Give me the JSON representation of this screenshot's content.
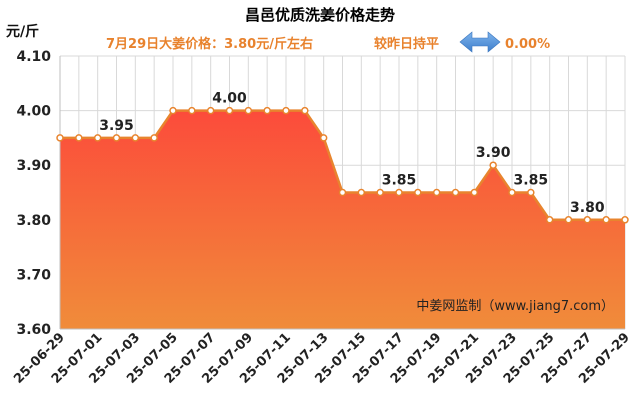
{
  "chart_data": {
    "type": "area",
    "title": "昌邑优质洗姜价格走势",
    "ylabel": "元/斤",
    "xlabel": "",
    "ylim": [
      3.6,
      4.1
    ],
    "yticks": [
      "3.60",
      "3.70",
      "3.80",
      "3.90",
      "4.00",
      "4.10"
    ],
    "x": [
      "25-06-29",
      "25-06-30",
      "25-07-01",
      "25-07-02",
      "25-07-03",
      "25-07-04",
      "25-07-05",
      "25-07-06",
      "25-07-07",
      "25-07-08",
      "25-07-09",
      "25-07-10",
      "25-07-11",
      "25-07-12",
      "25-07-13",
      "25-07-14",
      "25-07-15",
      "25-07-16",
      "25-07-17",
      "25-07-18",
      "25-07-19",
      "25-07-20",
      "25-07-21",
      "25-07-22",
      "25-07-23",
      "25-07-24",
      "25-07-25",
      "25-07-26",
      "25-07-27",
      "25-07-28",
      "25-07-29"
    ],
    "x_tick_labels": [
      "25-06-29",
      "25-07-01",
      "25-07-03",
      "25-07-05",
      "25-07-07",
      "25-07-09",
      "25-07-11",
      "25-07-13",
      "25-07-15",
      "25-07-17",
      "25-07-19",
      "25-07-21",
      "25-07-23",
      "25-07-25",
      "25-07-27",
      "25-07-29"
    ],
    "values": [
      3.95,
      3.95,
      3.95,
      3.95,
      3.95,
      3.95,
      4.0,
      4.0,
      4.0,
      4.0,
      4.0,
      4.0,
      4.0,
      4.0,
      3.95,
      3.85,
      3.85,
      3.85,
      3.85,
      3.85,
      3.85,
      3.85,
      3.85,
      3.9,
      3.85,
      3.85,
      3.8,
      3.8,
      3.8,
      3.8,
      3.8
    ],
    "data_labels": [
      {
        "x": "25-07-02",
        "text": "3.95"
      },
      {
        "x": "25-07-08",
        "text": "4.00"
      },
      {
        "x": "25-07-17",
        "text": "3.85"
      },
      {
        "x": "25-07-22",
        "text": "3.90"
      },
      {
        "x": "25-07-24",
        "text": "3.85"
      },
      {
        "x": "25-07-27",
        "text": "3.80"
      }
    ],
    "grid": true,
    "colors": {
      "line": "#e8842e",
      "marker_fill": "#ffffff",
      "fill_top": "#ff3b3b",
      "fill_bottom": "#f08c3a"
    }
  },
  "summary": {
    "price_text": "7月29日大姜价格：3.80元/斤左右",
    "change_text": "较昨日持平",
    "change_icon": "double-arrow-icon",
    "change_percent": "0.00%",
    "text_color": "#e8822d",
    "icon_color_light": "#7db3ec",
    "icon_color_dark": "#3f7fcc"
  },
  "watermark": "中姜网监制（www.jiang7.com）"
}
